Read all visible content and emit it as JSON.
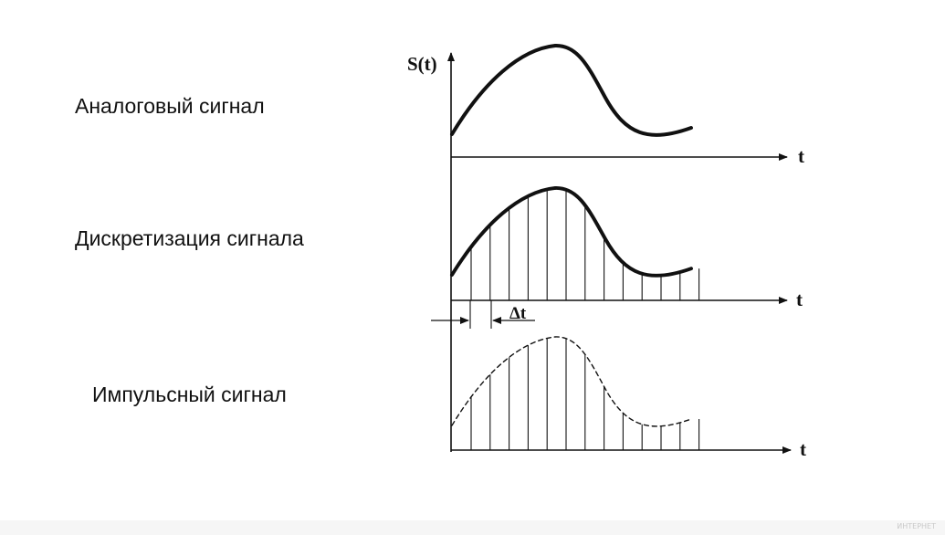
{
  "labels": {
    "analog": "Аналоговый сигнал",
    "sampling": "Дискретизация сигнала",
    "pulse": "Импульсный сигнал"
  },
  "axes": {
    "y_label": "S(t)",
    "x_label": "t",
    "delta_label": "Δt"
  },
  "watermark": "ИНТЕРНЕТ",
  "colors": {
    "ink": "#111111",
    "background": "#ffffff"
  },
  "panels": {
    "sample_count": 13
  }
}
